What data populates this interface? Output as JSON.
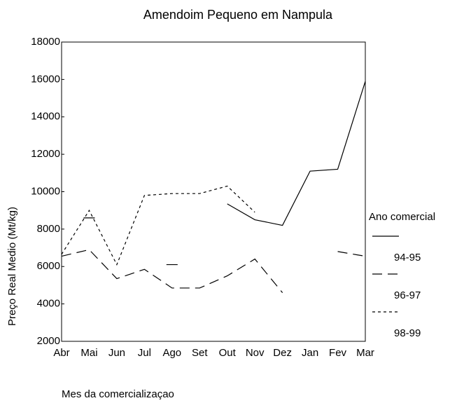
{
  "chart_data": {
    "type": "line",
    "title": "Amendoim Pequeno em Nampula",
    "x_label": "Mes da comercializaçao",
    "y_label": "Preço Real Medio (Mt/kg)",
    "legend_title": "Ano comercial",
    "categories": [
      "Abr",
      "Mai",
      "Jun",
      "Jul",
      "Ago",
      "Set",
      "Out",
      "Nov",
      "Dez",
      "Jan",
      "Fev",
      "Mar"
    ],
    "series": [
      {
        "name": "94-95",
        "color": "#000000",
        "dash": "none",
        "values": [
          null,
          8600,
          null,
          null,
          6100,
          null,
          9350,
          8500,
          8200,
          11100,
          11200,
          15900
        ]
      },
      {
        "name": "96-97",
        "color": "#000000",
        "dash": "long",
        "values": [
          6550,
          6900,
          5350,
          5850,
          4850,
          4850,
          5500,
          6400,
          4600,
          null,
          6800,
          6550
        ]
      },
      {
        "name": "98-99",
        "color": "#000000",
        "dash": "short",
        "values": [
          6650,
          9000,
          6100,
          9800,
          9900,
          9900,
          10300,
          8900,
          null,
          null,
          null,
          null
        ]
      }
    ],
    "ylim": [
      2000,
      18000
    ],
    "yticks": [
      2000,
      4000,
      6000,
      8000,
      10000,
      12000,
      14000,
      16000,
      18000
    ],
    "grid": false,
    "legend": "right"
  }
}
